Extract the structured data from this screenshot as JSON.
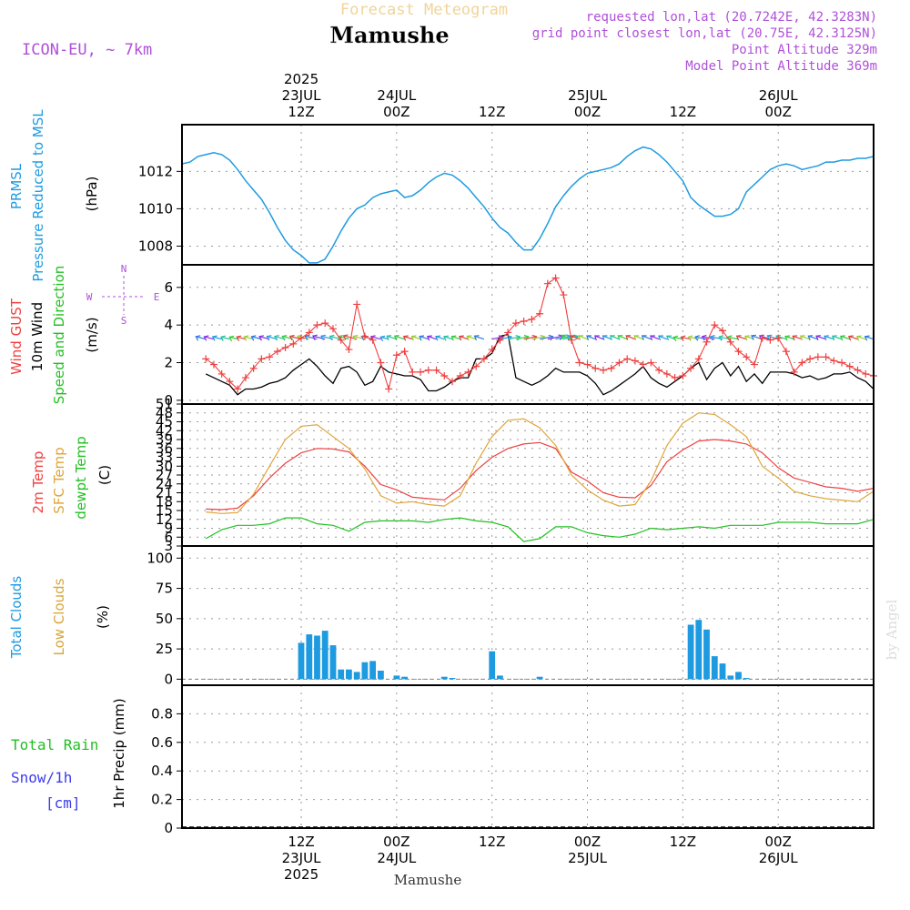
{
  "header": {
    "product": "Forecast Meteogram",
    "location": "Mamushe",
    "model": "ICON-EU, ~ 7km",
    "requested": "requested lon,lat (20.7242E, 42.3283N)",
    "gridpoint": "grid point closest lon,lat (20.75E, 42.3125N)",
    "point_alt": "Point Altitude 329m",
    "model_alt": "Model Point Altitude 369m",
    "footer_location": "Mamushe",
    "credit": "by Angel"
  },
  "colors": {
    "pressure": "#1e9be0",
    "gust": "#ef4040",
    "wind": "#000000",
    "temp2m": "#ef4040",
    "sfc": "#e0a53a",
    "dewpt": "#22c022",
    "total_clouds": "#1e9be0",
    "low_clouds": "#d9a63a",
    "rain": "#22c022",
    "snow": "#3c3cf0",
    "barb": "#2a7be0",
    "meta": "#b050d8"
  },
  "time_axis": {
    "top": [
      {
        "hour": 12,
        "l1": "2025",
        "l2": "23JUL",
        "l3": "12Z"
      },
      {
        "hour": 24,
        "l2": "24JUL",
        "l3": "00Z"
      },
      {
        "hour": 36,
        "l3": "12Z"
      },
      {
        "hour": 48,
        "l2": "25JUL",
        "l3": "00Z"
      },
      {
        "hour": 60,
        "l3": "12Z"
      },
      {
        "hour": 72,
        "l2": "26JUL",
        "l3": "00Z"
      }
    ],
    "bottom": [
      {
        "hour": 12,
        "l1": "12Z",
        "l2": "23JUL",
        "l3": "2025"
      },
      {
        "hour": 24,
        "l1": "00Z",
        "l2": "24JUL"
      },
      {
        "hour": 36,
        "l1": "12Z"
      },
      {
        "hour": 48,
        "l1": "00Z",
        "l2": "25JUL"
      },
      {
        "hour": 60,
        "l1": "12Z"
      },
      {
        "hour": 72,
        "l1": "00Z",
        "l2": "26JUL"
      }
    ]
  },
  "panels": {
    "pressure": {
      "label_a": "PRMSL",
      "label_b": "Pressure Reduced to MSL",
      "unit": "(hPa)",
      "ticks": [
        "1008",
        "1010",
        "1012"
      ]
    },
    "wind": {
      "label_gust": "Wind GUST",
      "label_wind": "10m Wind",
      "label_dir": "Speed and Direction",
      "unit": "(m/s)",
      "ticks": [
        "0",
        "2",
        "4",
        "6"
      ],
      "compass": {
        "n": "N",
        "s": "S",
        "w": "W",
        "e": "E"
      }
    },
    "temp": {
      "label_t2m": "2m Temp",
      "label_sfc": "SFC Temp",
      "label_dew": "dewpt Temp",
      "unit": "(C)",
      "ticks": [
        "3",
        "6",
        "9",
        "12",
        "15",
        "18",
        "21",
        "24",
        "27",
        "30",
        "33",
        "36",
        "39",
        "42",
        "45",
        "48",
        "51"
      ]
    },
    "clouds": {
      "label_total": "Total Clouds",
      "label_low": "Low Clouds",
      "unit": "(%)",
      "ticks": [
        "0",
        "25",
        "50",
        "75",
        "100"
      ]
    },
    "precip": {
      "label_rain": "Total  Rain",
      "label_snow": "Snow/1h",
      "label_cm": "[cm]",
      "unit": "1hr Precip (mm)",
      "ticks": [
        "0",
        "0.2",
        "0.4",
        "0.6",
        "0.8"
      ]
    }
  },
  "chart_data": [
    {
      "type": "line",
      "name": "PRMSL",
      "ylabel": "(hPa)",
      "ylim": [
        1007,
        1014.5
      ],
      "xlim": [
        -3,
        84
      ],
      "x": [
        -3,
        -2,
        -1,
        0,
        1,
        2,
        3,
        4,
        5,
        6,
        7,
        8,
        9,
        10,
        11,
        12,
        13,
        14,
        15,
        16,
        17,
        18,
        19,
        20,
        21,
        22,
        23,
        24,
        25,
        26,
        27,
        28,
        29,
        30,
        31,
        32,
        33,
        34,
        35,
        36,
        37,
        38,
        39,
        40,
        41,
        42,
        43,
        44,
        45,
        46,
        47,
        48,
        49,
        50,
        51,
        52,
        53,
        54,
        55,
        56,
        57,
        58,
        59,
        60,
        61,
        62,
        63,
        64,
        65,
        66,
        67,
        68,
        69,
        70,
        71,
        72,
        73,
        74,
        75,
        76,
        77,
        78,
        79,
        80,
        81,
        82,
        83,
        84
      ],
      "values": [
        1012.4,
        1012.5,
        1012.8,
        1012.9,
        1013.0,
        1012.9,
        1012.6,
        1012.1,
        1011.5,
        1011.0,
        1010.5,
        1009.8,
        1009.0,
        1008.3,
        1007.8,
        1007.5,
        1007.1,
        1007.1,
        1007.3,
        1008.0,
        1008.8,
        1009.5,
        1010.0,
        1010.2,
        1010.6,
        1010.8,
        1010.9,
        1011.0,
        1010.6,
        1010.7,
        1011.0,
        1011.4,
        1011.7,
        1011.9,
        1011.8,
        1011.5,
        1011.1,
        1010.6,
        1010.1,
        1009.5,
        1009.0,
        1008.7,
        1008.2,
        1007.8,
        1007.8,
        1008.4,
        1009.2,
        1010.1,
        1010.7,
        1011.2,
        1011.6,
        1011.9,
        1012.0,
        1012.1,
        1012.2,
        1012.4,
        1012.8,
        1013.1,
        1013.3,
        1013.2,
        1012.9,
        1012.5,
        1012.0,
        1011.5,
        1010.6,
        1010.2,
        1009.9,
        1009.6,
        1009.6,
        1009.7,
        1010.0,
        1010.9,
        1011.3,
        1011.7,
        1012.1,
        1012.3,
        1012.4,
        1012.3,
        1012.1,
        1012.2,
        1012.3,
        1012.5,
        1012.5,
        1012.6,
        1012.6,
        1012.7,
        1012.7,
        1012.8
      ]
    },
    {
      "type": "line",
      "name": "Wind GUST",
      "ylabel": "(m/s)",
      "ylim": [
        -0.2,
        7.2
      ],
      "xlim": [
        -3,
        84
      ],
      "series": [
        {
          "name": "Wind GUST",
          "x": [
            0,
            1,
            2,
            3,
            4,
            5,
            6,
            7,
            8,
            9,
            10,
            11,
            12,
            13,
            14,
            15,
            16,
            17,
            18,
            19,
            20,
            21,
            22,
            23,
            24,
            25,
            26,
            27,
            28,
            29,
            30,
            31,
            32,
            33,
            34,
            35,
            36,
            37,
            38,
            39,
            40,
            41,
            42,
            43,
            44,
            45,
            46,
            47,
            48,
            49,
            50,
            51,
            52,
            53,
            54,
            55,
            56,
            57,
            58,
            59,
            60,
            61,
            62,
            63,
            64,
            65,
            66,
            67,
            68,
            69,
            70,
            71,
            72,
            73,
            74,
            75,
            76,
            77,
            78,
            79,
            80,
            81,
            82,
            83,
            84
          ],
          "values": [
            2.2,
            1.9,
            1.4,
            1.0,
            0.6,
            1.2,
            1.7,
            2.2,
            2.3,
            2.6,
            2.8,
            3.0,
            3.3,
            3.6,
            4.0,
            4.1,
            3.8,
            3.2,
            2.7,
            5.1,
            3.4,
            3.2,
            2.0,
            0.6,
            2.4,
            2.6,
            1.5,
            1.5,
            1.6,
            1.6,
            1.3,
            1.0,
            1.3,
            1.5,
            1.8,
            2.2,
            2.7,
            3.2,
            3.6,
            4.1,
            4.2,
            4.3,
            4.6,
            6.2,
            6.5,
            5.6,
            3.2,
            2.0,
            1.9,
            1.7,
            1.6,
            1.7,
            2.0,
            2.2,
            2.1,
            1.9,
            2.0,
            1.6,
            1.4,
            1.2,
            1.3,
            1.7,
            2.2,
            3.1,
            4.0,
            3.7,
            3.1,
            2.6,
            2.3,
            1.9,
            3.3,
            3.2,
            3.3,
            2.6,
            1.5,
            2.0,
            2.2,
            2.3,
            2.3,
            2.1,
            2.0,
            1.8,
            1.6,
            1.4,
            1.3
          ]
        },
        {
          "name": "10m Wind",
          "x": [
            0,
            1,
            2,
            3,
            4,
            5,
            6,
            7,
            8,
            9,
            10,
            11,
            12,
            13,
            14,
            15,
            16,
            17,
            18,
            19,
            20,
            21,
            22,
            23,
            24,
            25,
            26,
            27,
            28,
            29,
            30,
            31,
            32,
            33,
            34,
            35,
            36,
            37,
            38,
            39,
            40,
            41,
            42,
            43,
            44,
            45,
            46,
            47,
            48,
            49,
            50,
            51,
            52,
            53,
            54,
            55,
            56,
            57,
            58,
            59,
            60,
            61,
            62,
            63,
            64,
            65,
            66,
            67,
            68,
            69,
            70,
            71,
            72,
            73,
            74,
            75,
            76,
            77,
            78,
            79,
            80,
            81,
            82,
            83,
            84
          ],
          "values": [
            1.4,
            1.2,
            1.0,
            0.8,
            0.3,
            0.6,
            0.6,
            0.7,
            0.9,
            1.0,
            1.2,
            1.6,
            1.9,
            2.2,
            1.8,
            1.3,
            0.9,
            1.7,
            1.8,
            1.5,
            0.8,
            1.0,
            1.8,
            1.5,
            1.4,
            1.3,
            1.3,
            1.1,
            0.5,
            0.5,
            0.7,
            1.0,
            1.2,
            1.2,
            2.2,
            2.2,
            2.5,
            3.4,
            3.5,
            1.2,
            1.0,
            0.8,
            1.0,
            1.3,
            1.7,
            1.5,
            1.5,
            1.5,
            1.3,
            0.9,
            0.3,
            0.5,
            0.8,
            1.1,
            1.4,
            1.8,
            1.2,
            0.9,
            0.7,
            1.0,
            1.3,
            1.7,
            2.0,
            1.1,
            1.7,
            2.0,
            1.3,
            1.8,
            1.0,
            1.4,
            0.9,
            1.5,
            1.5,
            1.5,
            1.4,
            1.2,
            1.3,
            1.1,
            1.2,
            1.4,
            1.4,
            1.5,
            1.2,
            1.0,
            0.6
          ]
        }
      ]
    },
    {
      "type": "line",
      "name": "Temperature",
      "ylabel": "(C)",
      "ylim": [
        3,
        51
      ],
      "xlim": [
        -3,
        84
      ],
      "series": [
        {
          "name": "2m Temp",
          "x": [
            0,
            2,
            4,
            6,
            8,
            10,
            12,
            14,
            16,
            18,
            20,
            22,
            24,
            26,
            28,
            30,
            32,
            34,
            36,
            38,
            40,
            42,
            44,
            46,
            48,
            50,
            52,
            54,
            56,
            58,
            60,
            62,
            64,
            66,
            68,
            70,
            72,
            74,
            76,
            78,
            80,
            82,
            84
          ],
          "values": [
            15.5,
            15.3,
            15.8,
            20,
            26,
            31,
            34.5,
            36,
            35.8,
            34.8,
            30.0,
            23.8,
            22,
            19.5,
            19.0,
            18.6,
            22.5,
            28.5,
            33.0,
            36.0,
            37.5,
            38.0,
            36.0,
            28.0,
            25.0,
            21.0,
            19.5,
            19.3,
            23.5,
            31.5,
            35.5,
            38.5,
            39.0,
            38.5,
            37.5,
            34.5,
            29.5,
            26.0,
            24.5,
            23.0,
            22.5,
            21.5,
            22.5
          ]
        },
        {
          "name": "SFC Temp",
          "x": [
            0,
            2,
            4,
            6,
            8,
            10,
            12,
            14,
            16,
            18,
            20,
            22,
            24,
            26,
            28,
            30,
            32,
            34,
            36,
            38,
            40,
            42,
            44,
            46,
            48,
            50,
            52,
            54,
            56,
            58,
            60,
            62,
            64,
            66,
            68,
            70,
            72,
            74,
            76,
            78,
            80,
            82,
            84
          ],
          "values": [
            14.5,
            14.0,
            14.3,
            20.5,
            30,
            39,
            43.5,
            44.0,
            40.0,
            36.0,
            29.0,
            20.0,
            17.5,
            18.0,
            17.0,
            16.5,
            20.0,
            31.0,
            40.0,
            45.5,
            46.0,
            43.0,
            37.0,
            27.0,
            22.0,
            18.5,
            16.5,
            17.0,
            25.0,
            37.0,
            44.5,
            48.0,
            47.5,
            44.0,
            40.0,
            30.0,
            26.0,
            21.5,
            20.0,
            19.0,
            18.5,
            18.0,
            21.5
          ]
        },
        {
          "name": "dewpt Temp",
          "x": [
            0,
            2,
            4,
            6,
            8,
            10,
            12,
            14,
            16,
            18,
            20,
            22,
            24,
            26,
            28,
            30,
            32,
            34,
            36,
            38,
            40,
            42,
            44,
            46,
            48,
            50,
            52,
            54,
            56,
            58,
            60,
            62,
            64,
            66,
            68,
            70,
            72,
            74,
            76,
            78,
            80,
            82,
            84
          ],
          "values": [
            5.5,
            8.5,
            10.0,
            10.0,
            10.5,
            12.5,
            12.5,
            10.5,
            10.0,
            8.0,
            11.0,
            11.5,
            11.5,
            11.5,
            11.0,
            12.0,
            12.5,
            11.5,
            11.0,
            9.5,
            4.5,
            5.5,
            9.5,
            9.5,
            7.5,
            6.5,
            6.0,
            7.0,
            9.0,
            8.5,
            9.0,
            9.5,
            9.0,
            10.0,
            10.0,
            10.0,
            11.0,
            11.0,
            11.0,
            10.5,
            10.5,
            10.5,
            12.0
          ]
        }
      ]
    },
    {
      "type": "bar",
      "name": "Clouds",
      "ylabel": "(%)",
      "ylim": [
        -5,
        110
      ],
      "xlim": [
        -3,
        84
      ],
      "x": [
        12,
        13,
        14,
        15,
        16,
        17,
        18,
        19,
        20,
        21,
        22,
        23,
        24,
        25,
        26,
        27,
        28,
        29,
        30,
        31,
        32,
        33,
        34,
        35,
        36,
        37,
        38,
        39,
        40,
        41,
        42,
        43,
        44,
        45,
        46,
        47,
        48,
        49,
        50,
        51,
        52,
        53,
        54,
        55,
        56,
        57,
        58,
        59,
        60,
        61,
        62,
        63,
        64,
        65,
        66,
        67,
        68,
        69
      ],
      "values": [
        30,
        37,
        36,
        40,
        28,
        8,
        8,
        6,
        14,
        15,
        7,
        0,
        3,
        2,
        0,
        0,
        0,
        0,
        2,
        1,
        0,
        0,
        0,
        0,
        23,
        3,
        0,
        0,
        0,
        0,
        2,
        0,
        0,
        0,
        0,
        0,
        0,
        0,
        0,
        0,
        0,
        0,
        0,
        0,
        0,
        0,
        0,
        0,
        0,
        45,
        49,
        41,
        19,
        13,
        3,
        6,
        1,
        0
      ]
    },
    {
      "type": "bar",
      "name": "1hr Precip",
      "ylabel": "1hr Precip (mm)",
      "ylim": [
        0,
        1.0
      ],
      "xlim": [
        -3,
        84
      ],
      "x": [],
      "values": []
    }
  ]
}
